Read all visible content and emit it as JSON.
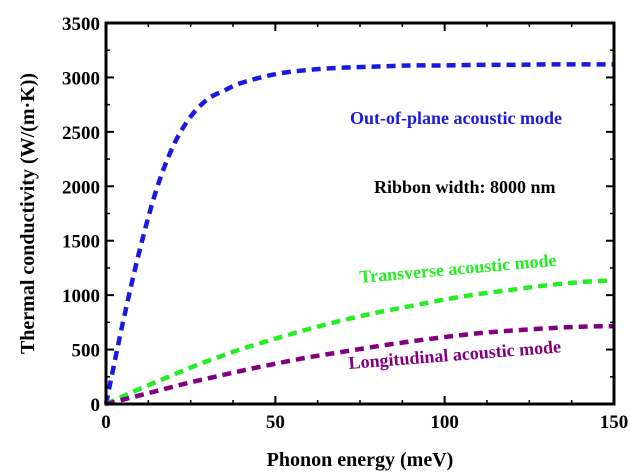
{
  "chart_data": {
    "type": "line",
    "xlabel": "Phonon energy (meV)",
    "ylabel": "Thermal conductivity (W/(m·K))",
    "xlim": [
      0,
      150
    ],
    "ylim": [
      0,
      3500
    ],
    "xticks": [
      0,
      50,
      100,
      150
    ],
    "yticks": [
      0,
      500,
      1000,
      1500,
      2000,
      2500,
      3000,
      3500
    ],
    "grid": false,
    "line_style": "dashed",
    "annotation": "Ribbon width: 8000 nm",
    "x": [
      0,
      5,
      10,
      15,
      20,
      25,
      30,
      35,
      40,
      50,
      60,
      70,
      80,
      90,
      100,
      110,
      120,
      130,
      140,
      150
    ],
    "series": [
      {
        "name": "Out-of-plane acoustic mode",
        "color": "#1a1adf",
        "values": [
          0,
          750,
          1420,
          1980,
          2380,
          2640,
          2800,
          2880,
          2950,
          3030,
          3070,
          3090,
          3100,
          3110,
          3110,
          3115,
          3115,
          3120,
          3120,
          3120
        ]
      },
      {
        "name": "Transverse acoustic mode",
        "color": "#22ee22",
        "values": [
          0,
          70,
          140,
          205,
          270,
          335,
          395,
          450,
          505,
          600,
          690,
          770,
          840,
          900,
          960,
          1010,
          1050,
          1090,
          1120,
          1135
        ]
      },
      {
        "name": "Longitudinal acoustic mode",
        "color": "#800080",
        "values": [
          0,
          40,
          80,
          120,
          160,
          200,
          235,
          270,
          305,
          370,
          430,
          480,
          530,
          575,
          615,
          650,
          675,
          695,
          710,
          715
        ]
      }
    ]
  }
}
